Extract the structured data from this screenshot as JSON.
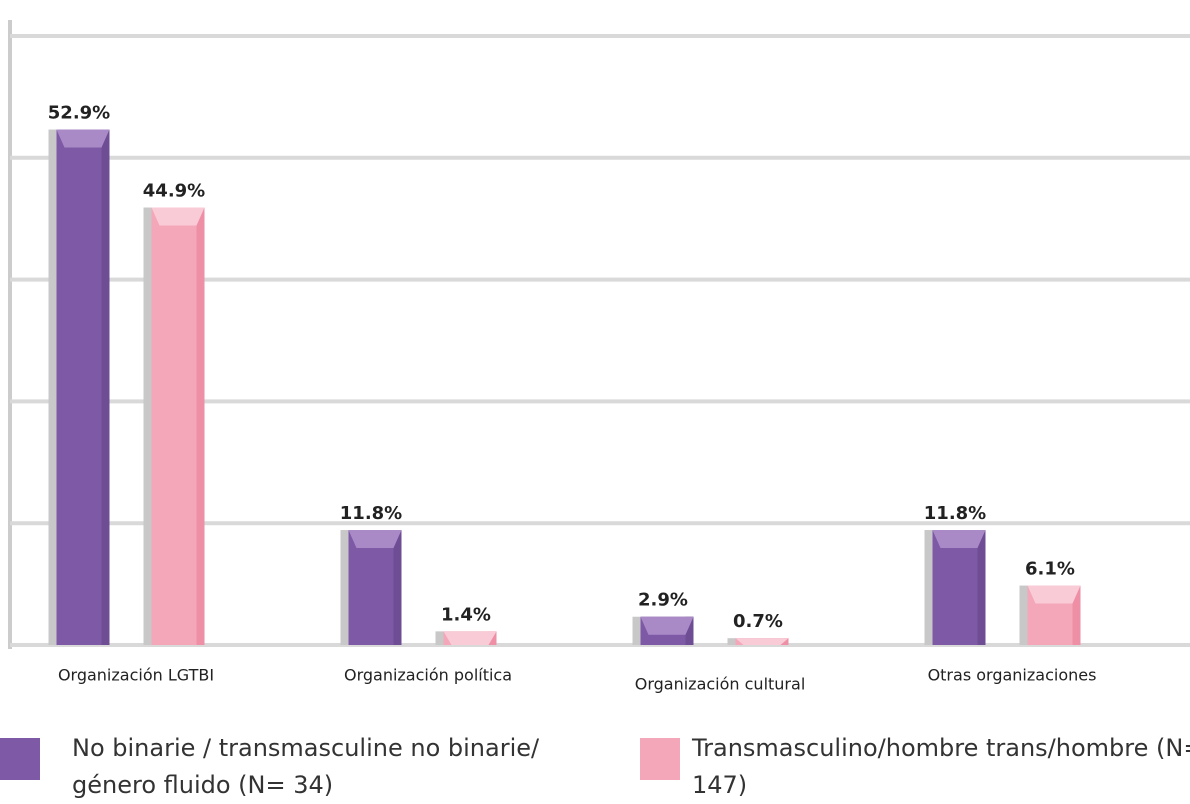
{
  "chart_data": {
    "type": "bar",
    "categories": [
      "Organización LGTBI",
      "Organización política",
      "Organización cultural",
      "Otras organizaciones"
    ],
    "series": [
      {
        "name": "No binarie / transmasculine no binarie/ género fluido (N= 34)",
        "color": "#7e5aa6",
        "values": [
          52.9,
          11.8,
          2.9,
          11.8
        ],
        "value_labels": [
          "52.9%",
          "11.8%",
          "2.9%",
          "11.8%"
        ]
      },
      {
        "name": "Transmasculino/hombre trans/hombre (N= 147)",
        "color": "#f4a7b9",
        "values": [
          44.9,
          1.4,
          0.7,
          6.1
        ],
        "value_labels": [
          "44.9%",
          "1.4%",
          "0.7%",
          "6.1%"
        ]
      }
    ],
    "ylim": [
      0,
      62.5
    ],
    "yticks": [
      0,
      12.5,
      25,
      37.5,
      50,
      62.5
    ],
    "grid": true
  }
}
